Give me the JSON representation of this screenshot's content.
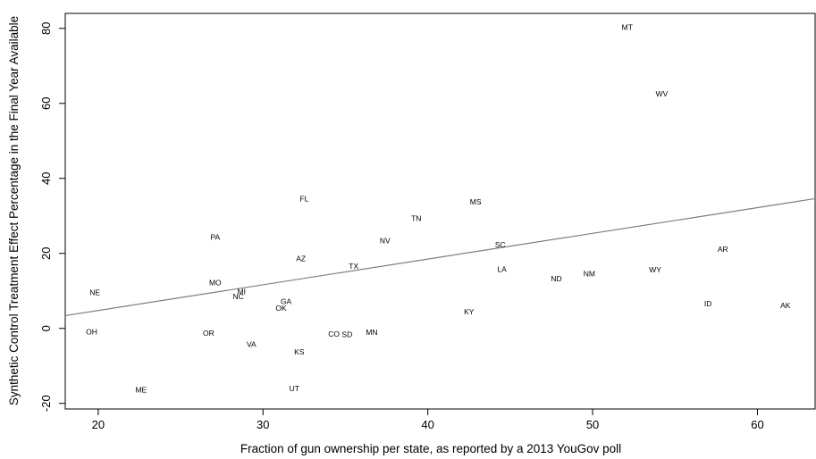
{
  "chart_data": {
    "type": "scatter",
    "title": "",
    "xlabel": "Fraction of gun ownership per state, as reported by a 2013 YouGov poll",
    "ylabel": "Synthetic Control Treatment Effect Percentage in the Final Year Available",
    "xlim": [
      18,
      63.5
    ],
    "ylim": [
      -21.5,
      84
    ],
    "x_ticks": [
      20,
      30,
      40,
      50,
      60
    ],
    "y_ticks": [
      -20,
      0,
      20,
      40,
      60,
      80
    ],
    "grid": false,
    "legend": "none",
    "points": [
      {
        "label": "MT",
        "x": 52.1,
        "y": 80.3
      },
      {
        "label": "WV",
        "x": 54.2,
        "y": 62.6
      },
      {
        "label": "FL",
        "x": 32.5,
        "y": 34.6
      },
      {
        "label": "MS",
        "x": 42.9,
        "y": 33.8
      },
      {
        "label": "TN",
        "x": 39.3,
        "y": 29.4
      },
      {
        "label": "PA",
        "x": 27.1,
        "y": 24.3
      },
      {
        "label": "NV",
        "x": 37.4,
        "y": 23.4
      },
      {
        "label": "SC",
        "x": 44.4,
        "y": 22.3
      },
      {
        "label": "AR",
        "x": 57.9,
        "y": 21.1
      },
      {
        "label": "AZ",
        "x": 32.3,
        "y": 18.6
      },
      {
        "label": "TX",
        "x": 35.5,
        "y": 16.6
      },
      {
        "label": "LA",
        "x": 44.5,
        "y": 15.8
      },
      {
        "label": "WY",
        "x": 53.8,
        "y": 15.7
      },
      {
        "label": "NM",
        "x": 49.8,
        "y": 14.6
      },
      {
        "label": "ND",
        "x": 47.8,
        "y": 13.3
      },
      {
        "label": "MO",
        "x": 27.1,
        "y": 12.2
      },
      {
        "label": "NE",
        "x": 19.8,
        "y": 9.6
      },
      {
        "label": "MI",
        "x": 28.7,
        "y": 9.8
      },
      {
        "label": "NC",
        "x": 28.5,
        "y": 8.5
      },
      {
        "label": "GA",
        "x": 31.4,
        "y": 7.2
      },
      {
        "label": "ID",
        "x": 57.0,
        "y": 6.6
      },
      {
        "label": "AK",
        "x": 61.7,
        "y": 6.1
      },
      {
        "label": "OK",
        "x": 31.1,
        "y": 5.4
      },
      {
        "label": "KY",
        "x": 42.5,
        "y": 4.4
      },
      {
        "label": "OH",
        "x": 19.6,
        "y": -0.9
      },
      {
        "label": "MN",
        "x": 36.6,
        "y": -1.0
      },
      {
        "label": "OR",
        "x": 26.7,
        "y": -1.3
      },
      {
        "label": "CO",
        "x": 34.3,
        "y": -1.5
      },
      {
        "label": "SD",
        "x": 35.1,
        "y": -1.6
      },
      {
        "label": "VA",
        "x": 29.3,
        "y": -4.2
      },
      {
        "label": "KS",
        "x": 32.2,
        "y": -6.3
      },
      {
        "label": "UT",
        "x": 31.9,
        "y": -16.0
      },
      {
        "label": "ME",
        "x": 22.6,
        "y": -16.4
      }
    ],
    "trend_line": {
      "x": [
        18,
        63.5
      ],
      "y": [
        3.4,
        34.6
      ],
      "color": "#7f7f7f"
    }
  }
}
